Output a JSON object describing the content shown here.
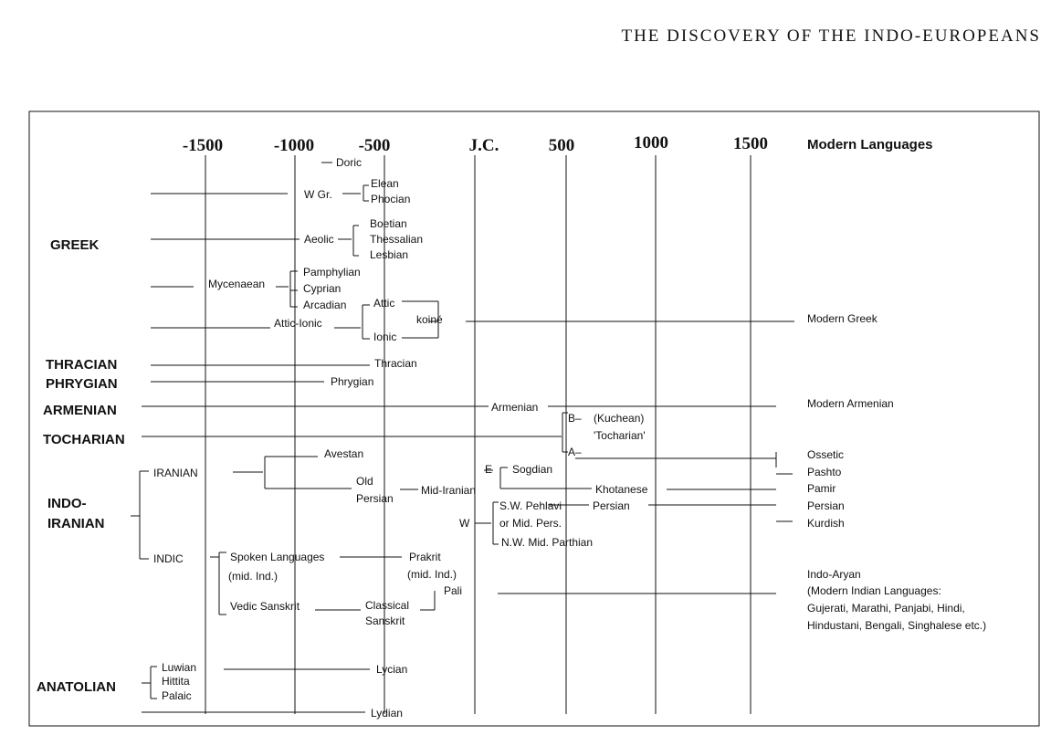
{
  "header": {
    "title": "THE DISCOVERY OF THE INDO-EUROPEANS"
  },
  "timeline": {
    "ticks": [
      "-1500",
      "-1000",
      "-500",
      "J.C.",
      "500",
      "1000",
      "1500"
    ],
    "modern_label": "Modern Languages"
  },
  "branches": [
    "GREEK",
    "THRACIAN",
    "PHRYGIAN",
    "ARMENIAN",
    "TOCHARIAN",
    "INDO-",
    "IRANIAN",
    "ANATOLIAN"
  ],
  "languages": [
    "Doric",
    "W Gr.",
    "Elean",
    "Phocian",
    "Aeolic",
    "Boetian",
    "Thessalian",
    "Lesbian",
    "Mycenaean",
    "Pamphylian",
    "Cyprian",
    "Arcadian",
    "Attic",
    "Attic-Ionic",
    "koiné",
    "Ionic",
    "Thracian",
    "Phrygian",
    "Armenian",
    "B–",
    "(Kuchean)",
    "'Tocharian'",
    "A–",
    "IRANIAN",
    "Avestan",
    "Old",
    "Persian",
    "Mid-Iranian",
    "E",
    "Sogdian",
    "Khotanese",
    "S.W. Pehlavi",
    "Persian",
    "or Mid. Pers.",
    "W",
    "N.W. Mid. Parthian",
    "INDIC",
    "Spoken Languages",
    "(mid. Ind.)",
    "Prakrit",
    "(mid. Ind.)",
    "Pali",
    "Vedic Sanskrit",
    "Classical",
    "Sanskrit",
    "Luwian",
    "Hittita",
    "Palaic",
    "Lycian",
    "Lydian"
  ],
  "modern_languages": [
    "Modern Greek",
    "Modern Armenian",
    "Ossetic",
    "Pashto",
    "Pamir",
    "Persian",
    "Kurdish",
    "Indo-Aryan",
    "(Modern Indian Languages:",
    "Gujerati, Marathi, Panjabi, Hindi,",
    "Hindustani, Bengali, Singhalese etc.)"
  ]
}
